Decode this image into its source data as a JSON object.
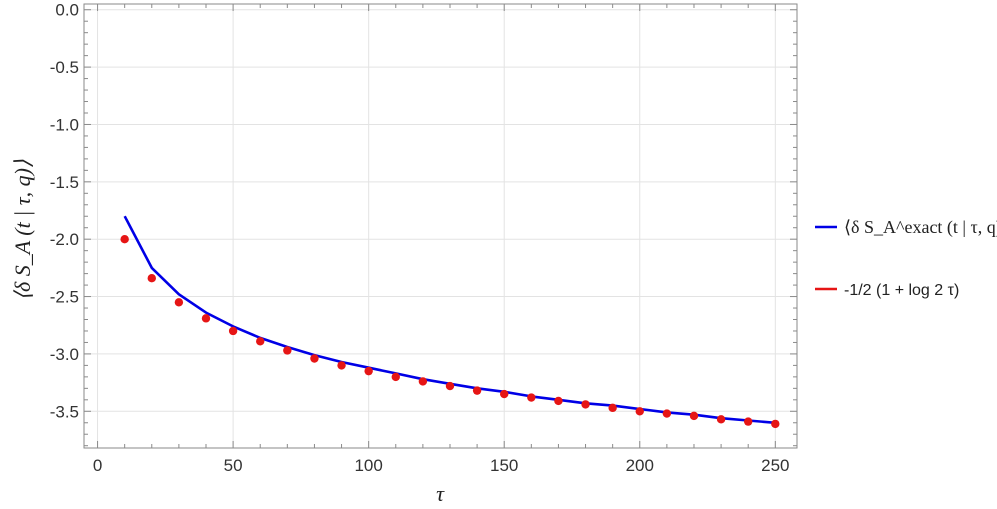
{
  "chart_data": {
    "type": "line",
    "xlabel": "τ",
    "ylabel": "⟨δ S_A (t | τ, q)⟩",
    "xlim": [
      -5,
      258
    ],
    "ylim": [
      -3.82,
      0.05
    ],
    "x_ticks": [
      0,
      50,
      100,
      150,
      200,
      250
    ],
    "y_ticks": [
      0.0,
      -0.5,
      -1.0,
      -1.5,
      -2.0,
      -2.5,
      -3.0,
      -3.5
    ],
    "grid": true,
    "legend_position": "right",
    "series": [
      {
        "name": "⟨δ S_A^exact (t | τ, q)⟩",
        "kind": "line",
        "color": "#0000e6",
        "x": [
          10,
          20,
          30,
          40,
          50,
          60,
          70,
          80,
          90,
          100,
          110,
          120,
          130,
          140,
          150,
          160,
          170,
          180,
          190,
          200,
          210,
          220,
          230,
          240,
          250
        ],
        "y": [
          -1.8,
          -2.25,
          -2.48,
          -2.64,
          -2.76,
          -2.86,
          -2.94,
          -3.01,
          -3.07,
          -3.12,
          -3.17,
          -3.22,
          -3.26,
          -3.3,
          -3.33,
          -3.37,
          -3.4,
          -3.43,
          -3.45,
          -3.48,
          -3.51,
          -3.53,
          -3.56,
          -3.58,
          -3.6
        ]
      },
      {
        "name": "-1/2 (1 + log 2 τ)",
        "kind": "scatter",
        "color": "#e61515",
        "x": [
          10,
          20,
          30,
          40,
          50,
          60,
          70,
          80,
          90,
          100,
          110,
          120,
          130,
          140,
          150,
          160,
          170,
          180,
          190,
          200,
          210,
          220,
          230,
          240,
          250
        ],
        "y": [
          -2.0,
          -2.34,
          -2.55,
          -2.69,
          -2.8,
          -2.89,
          -2.97,
          -3.04,
          -3.1,
          -3.15,
          -3.2,
          -3.24,
          -3.28,
          -3.32,
          -3.35,
          -3.38,
          -3.41,
          -3.44,
          -3.47,
          -3.5,
          -3.52,
          -3.54,
          -3.57,
          -3.59,
          -3.61
        ]
      }
    ]
  }
}
